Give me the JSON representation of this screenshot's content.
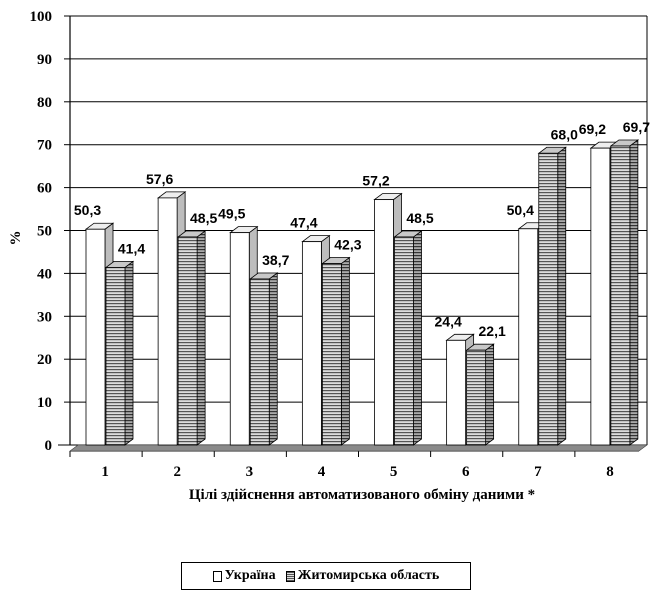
{
  "chart_data": {
    "type": "bar",
    "categories": [
      "1",
      "2",
      "3",
      "4",
      "5",
      "6",
      "7",
      "8"
    ],
    "series": [
      {
        "name": "Україна",
        "values": [
          50.3,
          57.6,
          49.5,
          47.4,
          57.2,
          24.4,
          50.4,
          69.2
        ],
        "labels": [
          "50,3",
          "57,6",
          "49,5",
          "47,4",
          "57,2",
          "24,4",
          "50,4",
          "69,2"
        ]
      },
      {
        "name": "Житомирська область",
        "values": [
          41.4,
          48.5,
          38.7,
          42.3,
          48.5,
          22.1,
          68.0,
          69.7
        ],
        "labels": [
          "41,4",
          "48,5",
          "38,7",
          "42,3",
          "48,5",
          "22,1",
          "68,0",
          "69,7"
        ]
      }
    ],
    "xlabel": "Цілі здійснення автоматизованого обміну даними *",
    "ylabel": "%",
    "ylim": [
      0,
      100
    ],
    "yticks": [
      "0",
      "10",
      "20",
      "30",
      "40",
      "50",
      "60",
      "70",
      "80",
      "90",
      "100"
    ],
    "grid": true,
    "legend_position": "bottom",
    "colors": {
      "ukraine": "#ffffff",
      "zhytomyr_light": "#dddddd",
      "zhytomyr_dark": "#555555",
      "side": "#999999",
      "floor": "#888888"
    }
  }
}
